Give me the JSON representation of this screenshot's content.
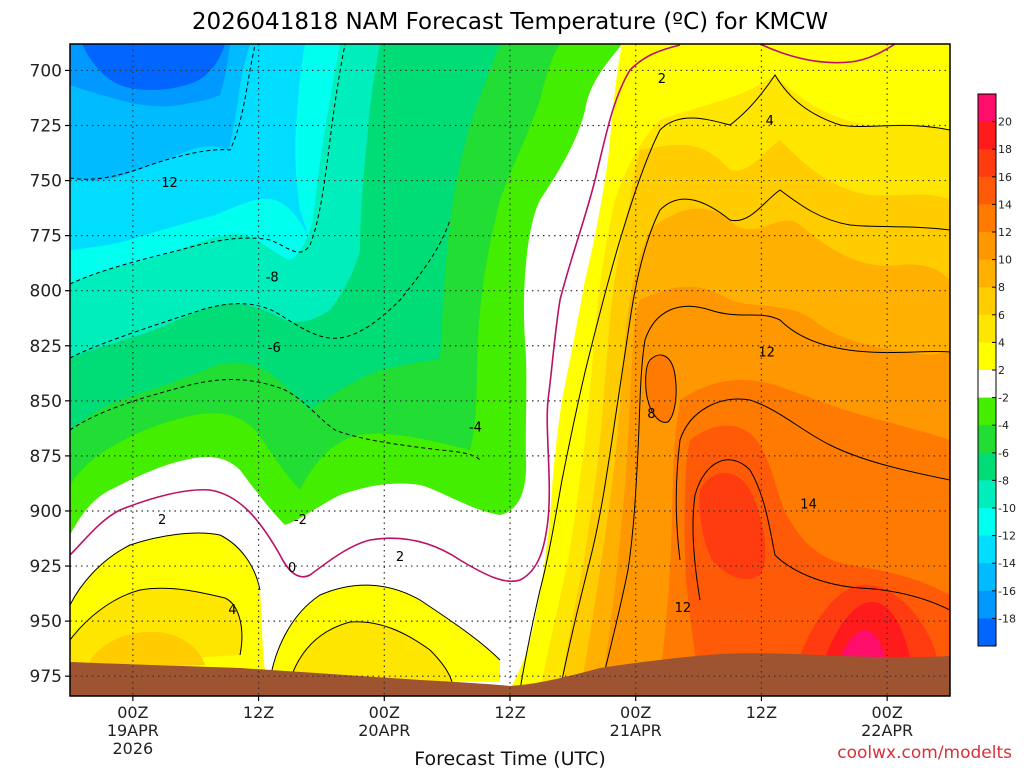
{
  "chart_data": {
    "type": "heatmap",
    "title": "2026041818 NAM Forecast Temperature (ºC) for KMCW",
    "xlabel": "Forecast Time (UTC)",
    "ylabel": "",
    "y_axis": {
      "ticks": [
        700,
        725,
        750,
        775,
        800,
        825,
        850,
        875,
        900,
        925,
        950,
        975
      ],
      "range": [
        688,
        984
      ],
      "direction": "downward increasing pressure"
    },
    "x_axis": {
      "ticks": [
        {
          "line1": "00Z",
          "line2": "19APR",
          "line3": "2026",
          "hour": 6
        },
        {
          "line1": "12Z",
          "line2": "",
          "line3": "",
          "hour": 18
        },
        {
          "line1": "00Z",
          "line2": "20APR",
          "line3": "",
          "hour": 30
        },
        {
          "line1": "12Z",
          "line2": "",
          "line3": "",
          "hour": 42
        },
        {
          "line1": "00Z",
          "line2": "21APR",
          "line3": "",
          "hour": 54
        },
        {
          "line1": "12Z",
          "line2": "",
          "line3": "",
          "hour": 66
        },
        {
          "line1": "00Z",
          "line2": "22APR",
          "line3": "",
          "hour": 78
        }
      ],
      "range_hours": [
        0,
        84
      ]
    },
    "colorbar": {
      "labels": [
        "20",
        "18",
        "16",
        "14",
        "12",
        "10",
        "8",
        "6",
        "4",
        "2",
        "-2",
        "-4",
        "-6",
        "-8",
        "-10",
        "-12",
        "-14",
        "-16",
        "-18"
      ],
      "colors": [
        "#ff0d6a",
        "#ff1b1b",
        "#ff3b10",
        "#ff5a08",
        "#ff7a00",
        "#ff9800",
        "#ffb000",
        "#ffcc00",
        "#ffe600",
        "#ffff00",
        "#ffffff",
        "#44ee00",
        "#22dd33",
        "#00dd77",
        "#00eebb",
        "#00ffee",
        "#00ddff",
        "#00bbff",
        "#0099ff",
        "#0066ff"
      ]
    },
    "contour_labels": [
      {
        "text": "12",
        "hour": 9.5,
        "p": 751
      },
      {
        "text": "-8",
        "hour": 19.3,
        "p": 794
      },
      {
        "text": "-6",
        "hour": 19.5,
        "p": 826
      },
      {
        "text": "-4",
        "hour": 38.7,
        "p": 862
      },
      {
        "text": "-2",
        "hour": 22,
        "p": 904
      },
      {
        "text": "0",
        "hour": 21.2,
        "p": 926
      },
      {
        "text": "2",
        "hour": 8.8,
        "p": 904
      },
      {
        "text": "2",
        "hour": 31.5,
        "p": 921
      },
      {
        "text": "4",
        "hour": 15.5,
        "p": 945
      },
      {
        "text": "2",
        "hour": 56.5,
        "p": 704
      },
      {
        "text": "4",
        "hour": 66.8,
        "p": 723
      },
      {
        "text": "8",
        "hour": 55.5,
        "p": 856
      },
      {
        "text": "12",
        "hour": 66.5,
        "p": 828
      },
      {
        "text": "14",
        "hour": 70.5,
        "p": 897
      },
      {
        "text": "12",
        "hour": 58.5,
        "p": 944
      }
    ],
    "colors": {
      "terrain": "#9e5331",
      "zero_line": "#bb1166"
    },
    "grid": true
  },
  "credit": "coolwx.com/modelts"
}
